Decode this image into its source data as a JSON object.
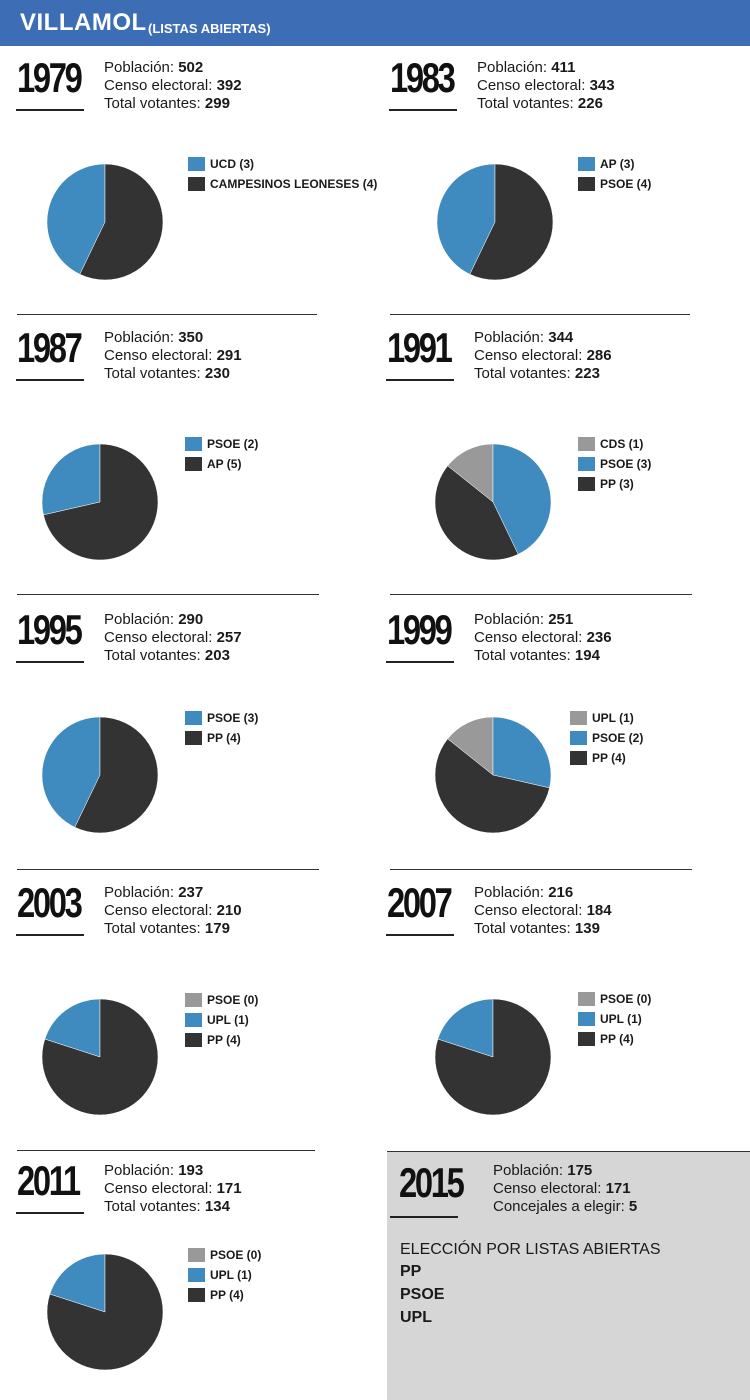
{
  "header": {
    "title": "VILLAMOL",
    "subtitle": "(LISTAS ABIERTAS)"
  },
  "labels": {
    "poblacion": "Población:",
    "censo": "Censo electoral:",
    "votantes": "Total votantes:",
    "concejales": "Concejales a elegir:"
  },
  "colors": {
    "blue": "#3f8abf",
    "dark": "#333333",
    "gray": "#999999",
    "header": "#3d6eb5",
    "box": "#d6d6d6"
  },
  "chart_data": [
    {
      "type": "pie",
      "year": "1979",
      "poblacion": "502",
      "censo": "392",
      "votantes": "299",
      "slices": [
        {
          "label": "UCD (3)",
          "value": 3,
          "color": "#3f8abf"
        },
        {
          "label": "CAMPESINOS LEONESES (4)",
          "value": 4,
          "color": "#333333"
        }
      ]
    },
    {
      "type": "pie",
      "year": "1983",
      "poblacion": "411",
      "censo": "343",
      "votantes": "226",
      "slices": [
        {
          "label": "AP (3)",
          "value": 3,
          "color": "#3f8abf"
        },
        {
          "label": "PSOE (4)",
          "value": 4,
          "color": "#333333"
        }
      ]
    },
    {
      "type": "pie",
      "year": "1987",
      "poblacion": "350",
      "censo": "291",
      "votantes": "230",
      "slices": [
        {
          "label": "PSOE (2)",
          "value": 2,
          "color": "#3f8abf"
        },
        {
          "label": "AP (5)",
          "value": 5,
          "color": "#333333"
        }
      ]
    },
    {
      "type": "pie",
      "year": "1991",
      "poblacion": "344",
      "censo": "286",
      "votantes": "223",
      "slices": [
        {
          "label": "CDS (1)",
          "value": 1,
          "color": "#999999"
        },
        {
          "label": "PSOE (3)",
          "value": 3,
          "color": "#3f8abf"
        },
        {
          "label": "PP (3)",
          "value": 3,
          "color": "#333333"
        }
      ]
    },
    {
      "type": "pie",
      "year": "1995",
      "poblacion": "290",
      "censo": "257",
      "votantes": "203",
      "slices": [
        {
          "label": "PSOE (3)",
          "value": 3,
          "color": "#3f8abf"
        },
        {
          "label": "PP (4)",
          "value": 4,
          "color": "#333333"
        }
      ]
    },
    {
      "type": "pie",
      "year": "1999",
      "poblacion": "251",
      "censo": "236",
      "votantes": "194",
      "slices": [
        {
          "label": "UPL (1)",
          "value": 1,
          "color": "#999999"
        },
        {
          "label": "PSOE (2)",
          "value": 2,
          "color": "#3f8abf"
        },
        {
          "label": "PP (4)",
          "value": 4,
          "color": "#333333"
        }
      ]
    },
    {
      "type": "pie",
      "year": "2003",
      "poblacion": "237",
      "censo": "210",
      "votantes": "179",
      "slices": [
        {
          "label": "PSOE (0)",
          "value": 0,
          "color": "#999999"
        },
        {
          "label": "UPL (1)",
          "value": 1,
          "color": "#3f8abf"
        },
        {
          "label": "PP (4)",
          "value": 4,
          "color": "#333333"
        }
      ]
    },
    {
      "type": "pie",
      "year": "2007",
      "poblacion": "216",
      "censo": "184",
      "votantes": "139",
      "slices": [
        {
          "label": "PSOE (0)",
          "value": 0,
          "color": "#999999"
        },
        {
          "label": "UPL (1)",
          "value": 1,
          "color": "#3f8abf"
        },
        {
          "label": "PP (4)",
          "value": 4,
          "color": "#333333"
        }
      ]
    },
    {
      "type": "pie",
      "year": "2011",
      "poblacion": "193",
      "censo": "171",
      "votantes": "134",
      "slices": [
        {
          "label": "PSOE (0)",
          "value": 0,
          "color": "#999999"
        },
        {
          "label": "UPL (1)",
          "value": 1,
          "color": "#3f8abf"
        },
        {
          "label": "PP (4)",
          "value": 4,
          "color": "#333333"
        }
      ]
    }
  ],
  "e2015": {
    "year": "2015",
    "poblacion": "175",
    "censo": "171",
    "concejales": "5",
    "title": "ELECCIÓN POR LISTAS ABIERTAS",
    "parties": [
      "PP",
      "PSOE",
      "UPL"
    ]
  }
}
